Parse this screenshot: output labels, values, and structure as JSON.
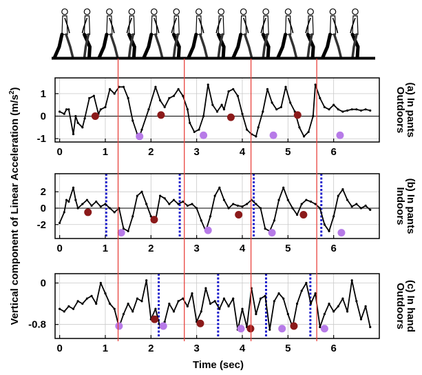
{
  "figure": {
    "ylabel": "Vertical component of Linear Acceleration (m/s",
    "ylabel_sup": "2",
    "ylabel_close": ")",
    "xlabel": "Time (sec)",
    "walker_icon": "walking-person-icon",
    "walker_count": 14,
    "step_line_color": "#e8413c",
    "step_lines_x": [
      1.28,
      2.73,
      4.19,
      5.63
    ]
  },
  "chart_data": [
    {
      "type": "line",
      "label_line1": "(a) In pants",
      "label_line2": "Outdoors",
      "xlim": [
        -0.1,
        7.0
      ],
      "ylim": [
        -1.15,
        1.7
      ],
      "x_ticks": [
        "0",
        "1",
        "2",
        "3",
        "4",
        "5",
        "6"
      ],
      "y_ticks": [
        1,
        0,
        -1
      ],
      "y_tick_labels": [
        "1",
        "0",
        "-1"
      ],
      "grid": true,
      "zero_line": true,
      "series": [
        {
          "color": "#000000",
          "x": [
            0,
            0.1,
            0.15,
            0.2,
            0.3,
            0.35,
            0.4,
            0.5,
            0.55,
            0.65,
            0.75,
            0.85,
            0.9,
            1.0,
            1.1,
            1.2,
            1.3,
            1.4,
            1.5,
            1.6,
            1.7,
            1.75,
            1.8,
            1.95,
            2.1,
            2.2,
            2.3,
            2.4,
            2.5,
            2.6,
            2.7,
            2.8,
            2.85,
            2.95,
            3.05,
            3.15,
            3.25,
            3.35,
            3.45,
            3.55,
            3.6,
            3.7,
            3.8,
            3.9,
            4.0,
            4.1,
            4.2,
            4.3,
            4.35,
            4.45,
            4.55,
            4.65,
            4.75,
            4.85,
            4.95,
            5.05,
            5.15,
            5.25,
            5.35,
            5.45,
            5.55,
            5.6,
            5.7,
            5.8,
            5.9,
            6.0,
            6.1,
            6.2,
            6.3,
            6.4,
            6.5,
            6.6,
            6.7,
            6.8
          ],
          "y": [
            0.2,
            0.1,
            0.3,
            0.3,
            -0.8,
            0.0,
            -0.3,
            -0.5,
            -0.1,
            0.8,
            0.9,
            0.1,
            0.3,
            0.4,
            1.2,
            1.0,
            1.3,
            1.3,
            0.8,
            -0.2,
            -0.8,
            -0.9,
            -0.6,
            0.3,
            1.3,
            0.7,
            0.4,
            0.8,
            0.9,
            1.2,
            0.9,
            0.3,
            -0.3,
            -0.7,
            -0.6,
            0.0,
            1.4,
            0.5,
            0.2,
            0.5,
            0.3,
            1.1,
            1.2,
            0.9,
            0.1,
            -0.6,
            -0.8,
            -0.9,
            -0.5,
            0.2,
            1.2,
            0.6,
            0.3,
            0.4,
            1.3,
            0.6,
            0.2,
            -0.5,
            -0.9,
            -0.7,
            0.0,
            1.4,
            0.8,
            0.4,
            0.3,
            0.5,
            0.3,
            0.2,
            0.25,
            0.3,
            0.3,
            0.25,
            0.3,
            0.25
          ]
        }
      ],
      "markers": [
        {
          "color": "#8b1a1a",
          "x": [
            0.78,
            2.22,
            3.75,
            5.21
          ],
          "y": [
            0.0,
            0.05,
            -0.05,
            0.05
          ]
        },
        {
          "color": "#b77be8",
          "x": [
            1.75,
            3.15,
            4.68,
            6.14
          ],
          "y": [
            -0.9,
            -0.85,
            -0.85,
            -0.85
          ]
        }
      ],
      "separators": []
    },
    {
      "type": "line",
      "label_line1": "(b) In pants",
      "label_line2": "Indoors",
      "xlim": [
        -0.1,
        7.0
      ],
      "ylim": [
        -3.7,
        4.2
      ],
      "x_ticks": [
        "0",
        "1",
        "2",
        "3",
        "4",
        "5",
        "6"
      ],
      "y_ticks": [
        2,
        0,
        -2
      ],
      "y_tick_labels": [
        "2",
        "0",
        "-2"
      ],
      "grid": true,
      "zero_line": true,
      "series": [
        {
          "color": "#000000",
          "x": [
            0,
            0.1,
            0.15,
            0.2,
            0.3,
            0.35,
            0.4,
            0.5,
            0.6,
            0.7,
            0.8,
            0.9,
            1.0,
            1.1,
            1.2,
            1.3,
            1.4,
            1.5,
            1.6,
            1.7,
            1.8,
            1.9,
            2.0,
            2.1,
            2.2,
            2.3,
            2.4,
            2.5,
            2.6,
            2.7,
            2.8,
            2.9,
            3.0,
            3.1,
            3.2,
            3.3,
            3.4,
            3.5,
            3.6,
            3.7,
            3.8,
            3.9,
            4.0,
            4.1,
            4.2,
            4.3,
            4.4,
            4.5,
            4.6,
            4.7,
            4.8,
            4.9,
            5.0,
            5.1,
            5.2,
            5.3,
            5.4,
            5.5,
            5.6,
            5.7,
            5.8,
            5.9,
            6.0,
            6.1,
            6.2,
            6.3,
            6.4,
            6.5,
            6.6,
            6.7,
            6.8
          ],
          "y": [
            -1.8,
            -0.5,
            1.0,
            0.8,
            2.5,
            1.0,
            0.0,
            0.5,
            1.0,
            0.3,
            0.8,
            0.2,
            0.5,
            0.0,
            -0.5,
            0.0,
            -2.5,
            -2.8,
            -1.0,
            1.5,
            2.0,
            0.5,
            -1.0,
            -1.5,
            1.5,
            1.2,
            0.5,
            1.0,
            0.5,
            0.8,
            0.3,
            0.5,
            0.0,
            -1.5,
            -2.8,
            -1.0,
            1.5,
            2.5,
            1.0,
            0.0,
            0.5,
            0.3,
            0.2,
            0.5,
            1.0,
            0.5,
            0.0,
            -2.5,
            -2.8,
            -1.5,
            1.0,
            2.5,
            1.0,
            0.0,
            -0.8,
            0.5,
            1.0,
            0.8,
            0.5,
            0.0,
            -2.0,
            -2.8,
            -1.0,
            1.5,
            2.3,
            1.0,
            0.2,
            0.5,
            0.0,
            0.3,
            -0.2
          ]
        }
      ],
      "markers": [
        {
          "color": "#8b1a1a",
          "x": [
            0.62,
            2.07,
            3.92,
            5.34
          ],
          "y": [
            -0.5,
            -1.4,
            -0.8,
            -0.8
          ]
        },
        {
          "color": "#b77be8",
          "x": [
            1.35,
            3.25,
            4.65,
            6.17
          ],
          "y": [
            -3.0,
            -2.7,
            -3.0,
            -3.0
          ]
        }
      ],
      "separators": [
        1.02,
        2.63,
        4.25,
        5.73
      ]
    },
    {
      "type": "line",
      "label_line1": "(c) In hand",
      "label_line2": "Outdoors",
      "xlim": [
        -0.1,
        7.0
      ],
      "ylim": [
        -1.07,
        0.18
      ],
      "x_ticks": [
        "0",
        "1",
        "2",
        "3",
        "4",
        "5",
        "6"
      ],
      "y_ticks": [
        0,
        -0.8
      ],
      "y_tick_labels": [
        "0",
        "-0.8"
      ],
      "grid": true,
      "zero_line": false,
      "series": [
        {
          "color": "#000000",
          "x": [
            0,
            0.1,
            0.2,
            0.3,
            0.4,
            0.5,
            0.6,
            0.7,
            0.8,
            0.9,
            1.0,
            1.1,
            1.2,
            1.3,
            1.4,
            1.5,
            1.6,
            1.7,
            1.8,
            1.9,
            2.0,
            2.1,
            2.2,
            2.3,
            2.4,
            2.5,
            2.6,
            2.7,
            2.8,
            2.9,
            3.0,
            3.1,
            3.2,
            3.3,
            3.4,
            3.5,
            3.6,
            3.7,
            3.8,
            3.9,
            4.0,
            4.1,
            4.2,
            4.3,
            4.4,
            4.5,
            4.6,
            4.7,
            4.8,
            4.9,
            5.0,
            5.1,
            5.2,
            5.3,
            5.4,
            5.5,
            5.6,
            5.7,
            5.8,
            5.9,
            6.0,
            6.1,
            6.2,
            6.3,
            6.4,
            6.5,
            6.6,
            6.7,
            6.8
          ],
          "y": [
            -0.5,
            -0.55,
            -0.45,
            -0.5,
            -0.35,
            -0.4,
            -0.3,
            -0.25,
            -0.4,
            0.0,
            -0.2,
            -0.4,
            -0.5,
            -0.85,
            -0.6,
            -0.4,
            -0.55,
            -0.3,
            -0.35,
            0.05,
            -0.7,
            -0.5,
            -0.85,
            -0.75,
            -0.4,
            -0.55,
            -0.35,
            -0.3,
            -0.45,
            -0.2,
            -0.75,
            -0.55,
            -0.1,
            -0.4,
            -0.35,
            -0.5,
            -0.3,
            -0.45,
            -0.3,
            -0.9,
            -0.5,
            -0.85,
            -0.1,
            -0.6,
            -0.3,
            -0.25,
            -0.9,
            -0.35,
            -0.2,
            -0.3,
            -0.6,
            -0.85,
            -0.4,
            -0.15,
            0.0,
            -0.4,
            -0.2,
            -0.85,
            -0.6,
            -0.4,
            -0.55,
            -0.45,
            -0.3,
            -0.55,
            0.05,
            -0.35,
            -0.7,
            -0.45,
            -0.85
          ]
        }
      ],
      "markers": [
        {
          "color": "#8b1a1a",
          "x": [
            2.08,
            3.08,
            4.18,
            5.13
          ],
          "y": [
            -0.7,
            -0.78,
            -0.88,
            -0.83
          ]
        },
        {
          "color": "#b77be8",
          "x": [
            1.3,
            2.27,
            3.97,
            4.87,
            5.8
          ],
          "y": [
            -0.83,
            -0.83,
            -0.88,
            -0.88,
            -0.88
          ]
        }
      ],
      "separators": [
        2.17,
        3.47,
        4.52,
        5.49
      ]
    }
  ]
}
